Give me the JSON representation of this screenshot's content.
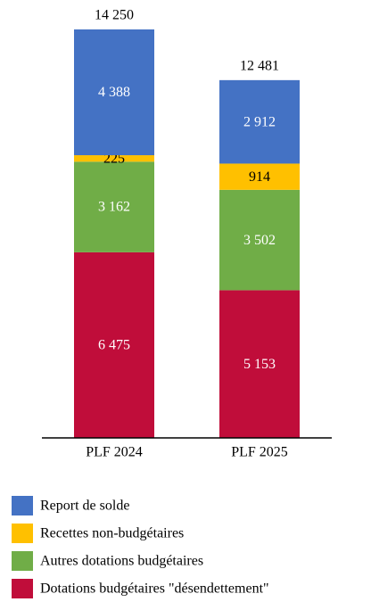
{
  "chart_data": {
    "type": "stacked_bar",
    "categories": [
      "PLF 2024",
      "PLF 2025"
    ],
    "series": [
      {
        "name": "Report de solde",
        "color": "#4472c4",
        "label_color": "#ffffff",
        "values": [
          4388,
          2912
        ],
        "value_labels": [
          "4 388",
          "2 912"
        ]
      },
      {
        "name": "Recettes non-budgétaires",
        "color": "#ffc000",
        "label_color": "#000000",
        "values": [
          225,
          914
        ]
      },
      {
        "name": "Autres dotations budgétaires",
        "color": "#70ad47",
        "label_color": "#ffffff",
        "values": [
          3162,
          3502
        ],
        "value_labels": [
          "3 162",
          "3 502"
        ]
      },
      {
        "name": "Dotations budgétaires \"désendettement\"",
        "color": "#c00d3a",
        "label_color": "#ffffff",
        "values": [
          6475,
          5153
        ],
        "value_labels": [
          "6 475",
          "5 153"
        ]
      }
    ],
    "totals": [
      14250,
      12481
    ],
    "total_labels": [
      "14 250",
      "12 481"
    ],
    "ylim": [
      0,
      14250
    ]
  }
}
